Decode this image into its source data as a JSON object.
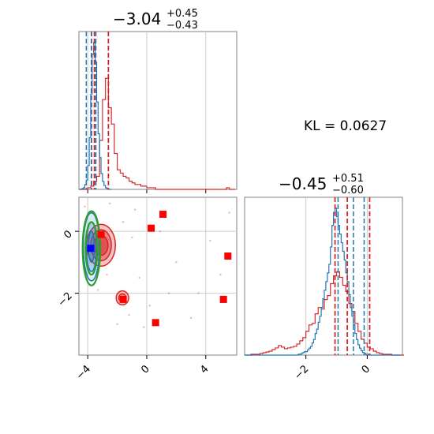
{
  "chart_data": {
    "type": "corner",
    "colors": {
      "red": "#d62728",
      "blue": "#1f77b4",
      "green": "#2ca02c",
      "grid": "#cccccc",
      "frame": "#808080"
    },
    "annotation": {
      "kl_text": "KL = 0.0627"
    },
    "param_titles": [
      {
        "median": "−3.04",
        "plus": "+0.45",
        "minus": "−0.43"
      },
      {
        "median": "−0.45",
        "plus": "+0.51",
        "minus": "−0.60"
      }
    ],
    "x_range_p1": [
      -4.6,
      6.1
    ],
    "x_range_p2": [
      -4.0,
      1.15
    ],
    "x_ticks_p1": [
      {
        "v": -4,
        "label": "−4"
      },
      {
        "v": 0,
        "label": "0"
      },
      {
        "v": 4,
        "label": "4"
      }
    ],
    "y_ticks_p2": [
      {
        "v": 0,
        "label": "0"
      },
      {
        "v": -2,
        "label": "−2"
      }
    ],
    "x_ticks_p2": [
      {
        "v": -2,
        "label": "−2"
      },
      {
        "v": 0,
        "label": "0"
      }
    ],
    "hist_p1_red": {
      "edges_start": -4.6,
      "bin_width": 0.2,
      "counts": [
        0,
        0,
        0,
        1,
        2,
        5,
        8,
        30,
        55,
        68,
        50,
        40,
        22,
        12,
        10,
        8,
        7,
        5,
        4,
        3,
        3,
        2,
        2,
        1,
        1,
        1,
        0,
        0,
        0,
        0,
        0,
        0,
        0,
        0,
        0,
        0,
        0,
        0,
        0,
        0,
        0,
        0,
        0,
        0,
        0,
        0,
        0,
        0,
        0,
        0,
        1,
        0,
        0
      ]
    },
    "hist_p1_blue": {
      "edges_start": -4.6,
      "bin_width": 0.1,
      "counts": [
        0,
        0,
        1,
        2,
        6,
        12,
        30,
        65,
        120,
        170,
        185,
        160,
        110,
        70,
        40,
        20,
        10,
        5,
        2,
        1,
        0,
        0
      ]
    },
    "hist_p2_red": {
      "edges_start": -4.0,
      "bin_width": 0.1,
      "counts": [
        0,
        0,
        1,
        1,
        1,
        2,
        3,
        4,
        5,
        7,
        9,
        12,
        10,
        8,
        9,
        10,
        11,
        14,
        18,
        22,
        30,
        38,
        40,
        52,
        60,
        58,
        70,
        75,
        90,
        100,
        105,
        98,
        88,
        80,
        65,
        55,
        40,
        30,
        20,
        15,
        10,
        8,
        5,
        3,
        2,
        1,
        1,
        1,
        0,
        0,
        0,
        0
      ]
    },
    "hist_p2_blue": {
      "edges_start": -4.0,
      "bin_width": 0.05,
      "counts": [
        0,
        0,
        0,
        0,
        0,
        0,
        0,
        0,
        0,
        0,
        0,
        0,
        0,
        0,
        0,
        0,
        0,
        0,
        0,
        0,
        0,
        0,
        0,
        0,
        0,
        0,
        0,
        0,
        0,
        0,
        0,
        0,
        0,
        0,
        0,
        1,
        1,
        2,
        3,
        4,
        4,
        6,
        8,
        10,
        14,
        18,
        25,
        30,
        38,
        45,
        55,
        65,
        75,
        85,
        95,
        105,
        125,
        150,
        165,
        170,
        160,
        150,
        140,
        130,
        120,
        110,
        95,
        85,
        70,
        55,
        45,
        35,
        25,
        18,
        12,
        8,
        5,
        3,
        2,
        1,
        1,
        0,
        0,
        0,
        0,
        0,
        0,
        0,
        0,
        0,
        0,
        0,
        0,
        0,
        0,
        0,
        0,
        0,
        0,
        0,
        0,
        0
      ]
    },
    "quantiles_p1_red": [
      -3.75,
      -3.55,
      -2.6
    ],
    "quantiles_p1_blue": [
      -4.1,
      -3.75,
      -3.45
    ],
    "quantiles_p2_red": [
      -1.05,
      -0.65,
      0.08
    ],
    "quantiles_p2_blue": [
      -0.95,
      -0.45,
      -0.1
    ],
    "red_squares": [
      {
        "x": -3.1,
        "y": -0.1
      },
      {
        "x": 0.3,
        "y": 0.1
      },
      {
        "x": 1.1,
        "y": 0.55
      },
      {
        "x": -1.6,
        "y": -2.2
      },
      {
        "x": 5.5,
        "y": -0.8
      },
      {
        "x": 5.2,
        "y": -2.2
      },
      {
        "x": 0.6,
        "y": -2.95
      }
    ],
    "blue_squares": [
      {
        "x": -3.8,
        "y": -0.55
      }
    ],
    "red_blobs": [
      {
        "cx": -3.1,
        "cy": -0.45,
        "levels": [
          {
            "rx": 1.95,
            "ry": 1.35
          },
          {
            "rx": 1.4,
            "ry": 1.0
          },
          {
            "rx": 0.95,
            "ry": 0.65
          }
        ],
        "alpha": 0.8
      },
      {
        "cx": -1.65,
        "cy": -2.15,
        "levels": [
          {
            "rx": 0.85,
            "ry": 0.45
          },
          {
            "rx": 0.5,
            "ry": 0.25
          }
        ],
        "alpha": 0.8
      }
    ],
    "blue_contour": {
      "cx": -3.75,
      "cy": -0.5,
      "levels": [
        {
          "rx": 0.55,
          "ry": 1.1
        },
        {
          "rx": 0.35,
          "ry": 0.8
        },
        {
          "rx": 0.2,
          "ry": 0.5
        }
      ]
    },
    "green_contour": {
      "cx": -3.75,
      "cy": -0.55,
      "levels": [
        {
          "rx": 0.6,
          "ry": 1.2
        },
        {
          "rx": 0.4,
          "ry": 0.85
        }
      ]
    },
    "scatter_red_sparse": [
      {
        "x": -4.2,
        "y": 0.8
      },
      {
        "x": -2.5,
        "y": 0.9
      },
      {
        "x": -1.0,
        "y": -0.2
      },
      {
        "x": -0.5,
        "y": -1.5
      },
      {
        "x": -2.0,
        "y": -3.0
      },
      {
        "x": -1.2,
        "y": -2.7
      },
      {
        "x": 0.2,
        "y": -2.4
      },
      {
        "x": 1.5,
        "y": -2.0
      },
      {
        "x": 3.5,
        "y": -2.0
      },
      {
        "x": 5.6,
        "y": 0.6
      },
      {
        "x": -0.2,
        "y": -3.1
      },
      {
        "x": 2.0,
        "y": -1.0
      },
      {
        "x": -1.6,
        "y": 0.3
      },
      {
        "x": -3.3,
        "y": -1.9
      },
      {
        "x": 0.9,
        "y": 0.0
      },
      {
        "x": 4.3,
        "y": -0.3
      },
      {
        "x": -2.7,
        "y": -1.4
      },
      {
        "x": -0.8,
        "y": 0.7
      },
      {
        "x": 3.0,
        "y": -2.8
      },
      {
        "x": 5.0,
        "y": -1.4
      }
    ]
  }
}
